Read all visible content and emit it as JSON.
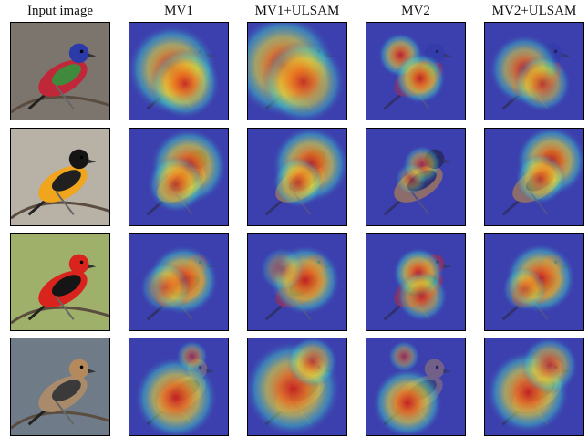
{
  "figure": {
    "column_headers": [
      "Input image",
      "MV1",
      "MV1+ULSAM",
      "MV2",
      "MV2+ULSAM"
    ],
    "rows": [
      {
        "subject": "painted-bunting",
        "background": "#7c756e",
        "body": "#c0283a",
        "head": "#2b3aa8",
        "wing": "#3f8a3c"
      },
      {
        "subject": "oriole",
        "background": "#b8b1a6",
        "body": "#f0a51c",
        "head": "#151515",
        "wing": "#202020"
      },
      {
        "subject": "scarlet-tanager",
        "background": "#9fb06a",
        "body": "#d8241c",
        "head": "#d8241c",
        "wing": "#151515"
      },
      {
        "subject": "waxwing",
        "background": "#6f7c88",
        "body": "#a98a6a",
        "head": "#b48a5c",
        "wing": "#3a3a3a"
      }
    ]
  }
}
